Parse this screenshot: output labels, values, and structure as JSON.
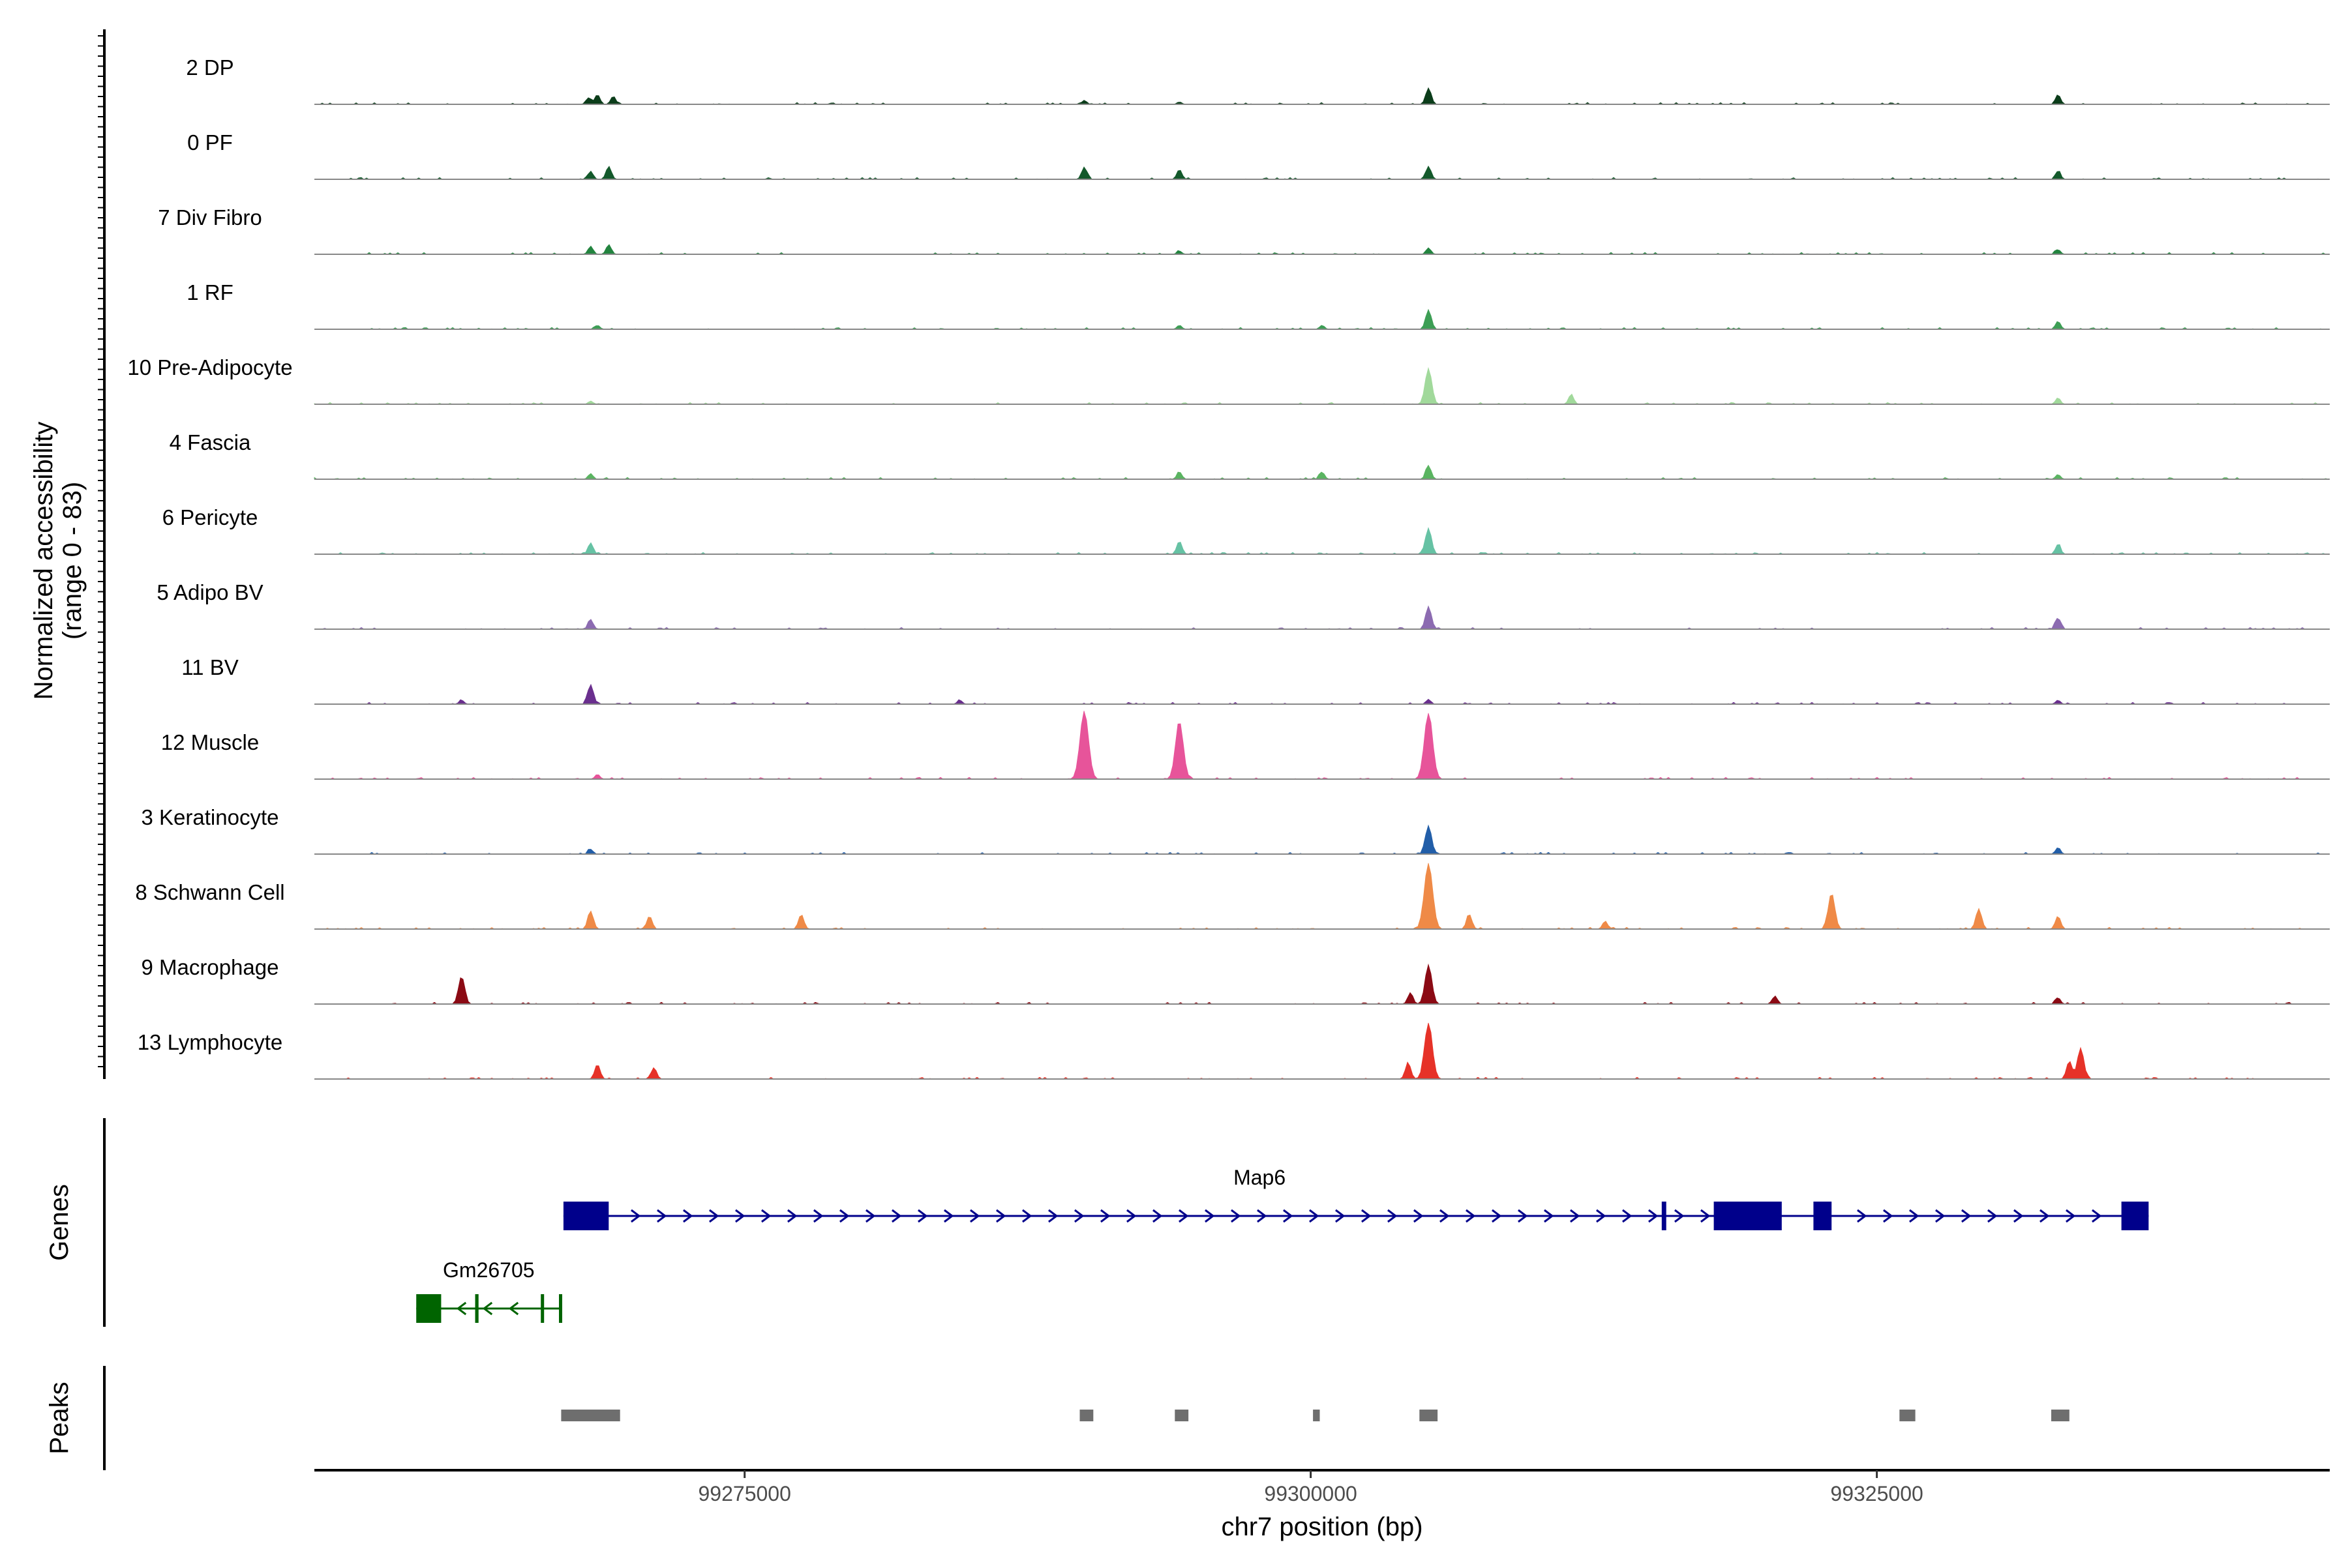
{
  "chart_data": {
    "type": "area",
    "subtype": "genome-coverage-tracks",
    "y_axis_title_line1": "Normalized accessibility",
    "y_axis_title_line2": "(range 0 - 83)",
    "y_range": [
      0,
      83
    ],
    "x_axis_title": "chr7 position (bp)",
    "x_range": [
      99256000,
      99345000
    ],
    "x_ticks": [
      99275000,
      99300000,
      99325000
    ],
    "x_tick_labels": [
      "99275000",
      "99300000",
      "99325000"
    ],
    "tracks": [
      {
        "name": "2 DP",
        "color": "#0b3d1a",
        "peaks": [
          [
            99268100,
            8
          ],
          [
            99268500,
            12
          ],
          [
            99269200,
            10
          ],
          [
            99290000,
            5
          ],
          [
            99294200,
            3
          ],
          [
            99305200,
            20
          ],
          [
            99333000,
            12
          ]
        ]
      },
      {
        "name": "0 PF",
        "color": "#13592b",
        "peaks": [
          [
            99268200,
            10
          ],
          [
            99269000,
            16
          ],
          [
            99290000,
            15
          ],
          [
            99294200,
            12
          ],
          [
            99305200,
            16
          ],
          [
            99333000,
            10
          ]
        ]
      },
      {
        "name": "7 Div Fibro",
        "color": "#23843f",
        "peaks": [
          [
            99268200,
            10
          ],
          [
            99269000,
            12
          ],
          [
            99294200,
            4
          ],
          [
            99305200,
            8
          ],
          [
            99333000,
            6
          ]
        ]
      },
      {
        "name": "1 RF",
        "color": "#3d9e55",
        "peaks": [
          [
            99268500,
            5
          ],
          [
            99294200,
            5
          ],
          [
            99300500,
            5
          ],
          [
            99305200,
            24
          ],
          [
            99333000,
            10
          ]
        ]
      },
      {
        "name": "10 Pre-Adipocyte",
        "color": "#a1d99b",
        "peaks": [
          [
            99268200,
            4
          ],
          [
            99305200,
            44
          ],
          [
            99311500,
            12
          ],
          [
            99333000,
            8
          ]
        ]
      },
      {
        "name": "4 Fascia",
        "color": "#5ab461",
        "peaks": [
          [
            99268200,
            7
          ],
          [
            99294200,
            9
          ],
          [
            99300500,
            9
          ],
          [
            99305200,
            17
          ],
          [
            99333000,
            6
          ]
        ]
      },
      {
        "name": "6 Pericyte",
        "color": "#66c2a4",
        "peaks": [
          [
            99268200,
            14
          ],
          [
            99294200,
            16
          ],
          [
            99305200,
            32
          ],
          [
            99333000,
            12
          ]
        ]
      },
      {
        "name": "5 Adipo BV",
        "color": "#8c6bb1",
        "peaks": [
          [
            99268200,
            12
          ],
          [
            99305200,
            28
          ],
          [
            99333000,
            14
          ]
        ]
      },
      {
        "name": "11 BV",
        "color": "#6a2f8e",
        "peaks": [
          [
            99268200,
            24
          ],
          [
            99262500,
            5
          ],
          [
            99284500,
            5
          ],
          [
            99305200,
            6
          ],
          [
            99333000,
            5
          ]
        ]
      },
      {
        "name": "12 Muscle",
        "color": "#e7549a",
        "peaks": [
          [
            99290000,
            83
          ],
          [
            99294200,
            70
          ],
          [
            99305200,
            80
          ],
          [
            99268500,
            6
          ]
        ]
      },
      {
        "name": "3 Keratinocyte",
        "color": "#225ea8",
        "peaks": [
          [
            99268200,
            6
          ],
          [
            99305200,
            35
          ],
          [
            99333000,
            8
          ]
        ]
      },
      {
        "name": "8 Schwann Cell",
        "color": "#ef8a47",
        "peaks": [
          [
            99268200,
            22
          ],
          [
            99270800,
            16
          ],
          [
            99277500,
            18
          ],
          [
            99305200,
            80
          ],
          [
            99307000,
            18
          ],
          [
            99313000,
            10
          ],
          [
            99323000,
            44
          ],
          [
            99329500,
            25
          ],
          [
            99333000,
            16
          ]
        ]
      },
      {
        "name": "9 Macrophage",
        "color": "#8b0a14",
        "peaks": [
          [
            99262500,
            34
          ],
          [
            99305200,
            48
          ],
          [
            99304400,
            14
          ],
          [
            99320500,
            10
          ],
          [
            99333000,
            8
          ]
        ]
      },
      {
        "name": "13 Lymphocyte",
        "color": "#e63228",
        "peaks": [
          [
            99305200,
            68
          ],
          [
            99304300,
            20
          ],
          [
            99268500,
            18
          ],
          [
            99271000,
            14
          ],
          [
            99334000,
            38
          ],
          [
            99333500,
            22
          ]
        ]
      }
    ],
    "genes_panel_title": "Genes",
    "genes": [
      {
        "name": "Map6",
        "strand": "+",
        "start": 99267000,
        "end": 99337000,
        "color": "#00008b",
        "exons": [
          [
            99267000,
            99269000
          ],
          [
            99315500,
            99315700
          ],
          [
            99317800,
            99320800
          ],
          [
            99322200,
            99323000
          ],
          [
            99335800,
            99337000
          ]
        ]
      },
      {
        "name": "Gm26705",
        "strand": "-",
        "start": 99260500,
        "end": 99266900,
        "color": "#006400",
        "exons": [
          [
            99260500,
            99261600
          ],
          [
            99263100,
            99263250
          ],
          [
            99266000,
            99266100
          ],
          [
            99266800,
            99266900
          ]
        ]
      }
    ],
    "peaks_panel_title": "Peaks",
    "peak_regions": [
      [
        99266900,
        99269500
      ],
      [
        99289800,
        99290400
      ],
      [
        99294000,
        99294600
      ],
      [
        99300100,
        99300400
      ],
      [
        99304800,
        99305600
      ],
      [
        99326000,
        99326700
      ],
      [
        99332700,
        99333500
      ]
    ],
    "peak_color": "#6e6e6e"
  }
}
